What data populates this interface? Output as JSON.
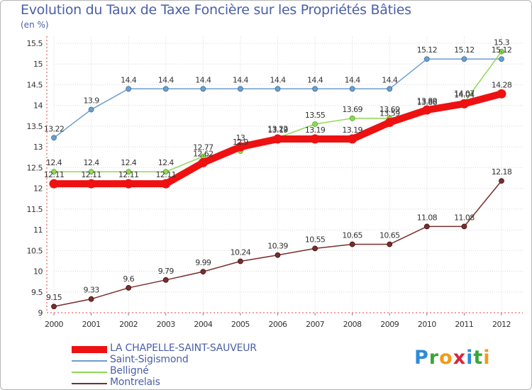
{
  "title": "Evolution du Taux de Taxe Foncière sur les Propriétés Bâties",
  "unit_label": "(en %)",
  "logo": {
    "letters": [
      "P",
      "r",
      "o",
      "x",
      "i",
      "t",
      "i"
    ],
    "colors": [
      "#2e8bd6",
      "#3aa63a",
      "#f29a1a",
      "#d7263d",
      "#2e8bd6",
      "#3aa63a",
      "#f29a1a"
    ]
  },
  "chart_data": {
    "type": "line",
    "title": "Evolution du Taux de Taxe Foncière sur les Propriétés Bâties",
    "ylabel": "(en %)",
    "xlabel": "",
    "ylim": [
      9,
      15.5
    ],
    "yticks": [
      "9",
      "9.5",
      "10",
      "10.5",
      "11",
      "11.5",
      "12",
      "12.5",
      "13",
      "13.5",
      "14",
      "14.5",
      "15",
      "15.5"
    ],
    "categories": [
      "2000",
      "2001",
      "2002",
      "2003",
      "2004",
      "2005",
      "2006",
      "2007",
      "2008",
      "2009",
      "2010",
      "2011",
      "2012"
    ],
    "legend_position": "bottom-left",
    "series": [
      {
        "name": "Saint-Sigismond",
        "color": "#6d9ecc",
        "values": [
          13.22,
          13.9,
          14.4,
          14.4,
          14.4,
          14.4,
          14.4,
          14.4,
          14.4,
          14.4,
          15.12,
          15.12,
          15.12
        ],
        "labels": [
          "13.22",
          "13.9",
          "14.4",
          "14.4",
          "14.4",
          "14.4",
          "14.4",
          "14.4",
          "14.4",
          "14.4",
          "15.12",
          "15.12",
          "15.12"
        ]
      },
      {
        "name": "Belligné",
        "color": "#8ed856",
        "values": [
          12.4,
          12.4,
          12.4,
          12.4,
          12.77,
          12.9,
          13.22,
          13.55,
          13.69,
          13.69,
          13.86,
          14.07,
          15.3
        ],
        "labels": [
          "12.4",
          "12.4",
          "12.4",
          "12.4",
          "12.77",
          "12.9",
          "13.22",
          "13.55",
          "13.69",
          "13.69",
          "13.86",
          "14.07",
          "15.3"
        ]
      },
      {
        "name": "Montrelais",
        "color": "#7a2e2e",
        "values": [
          9.15,
          9.33,
          9.6,
          9.79,
          9.99,
          10.24,
          10.39,
          10.55,
          10.65,
          10.65,
          11.08,
          11.08,
          12.18
        ],
        "labels": [
          "9.15",
          "9.33",
          "9.6",
          "9.79",
          "9.99",
          "10.24",
          "10.39",
          "10.55",
          "10.65",
          "10.65",
          "11.08",
          "11.08",
          "12.18"
        ]
      },
      {
        "name": "LA CHAPELLE-SAINT-SAUVEUR",
        "color": "#ee1111",
        "values": [
          12.11,
          12.11,
          12.11,
          12.11,
          12.62,
          13.0,
          13.19,
          13.19,
          13.19,
          13.59,
          13.89,
          14.04,
          14.28
        ],
        "labels": [
          "12.11",
          "12.11",
          "12.11",
          "12.11",
          "12.62",
          "13",
          "13.19",
          "13.19",
          "13.19",
          "13.59",
          "13.89",
          "14.04",
          "14.28"
        ]
      }
    ],
    "legend_order": [
      "LA CHAPELLE-SAINT-SAUVEUR",
      "Saint-Sigismond",
      "Belligné",
      "Montrelais"
    ]
  }
}
